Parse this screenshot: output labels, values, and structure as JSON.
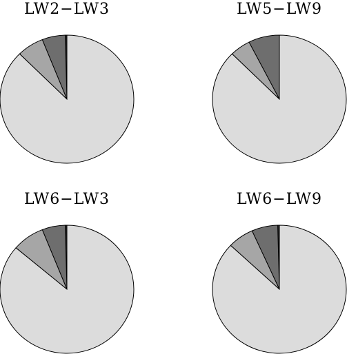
{
  "chart_data": [
    {
      "type": "pie",
      "title": "LW2−LW3",
      "start_angle_deg": 0,
      "direction": "counterclockwise",
      "slices": [
        {
          "value": 0.4,
          "color": "#2a2a2a"
        },
        {
          "value": 5.6,
          "color": "#6e6e6e"
        },
        {
          "value": 6.5,
          "color": "#a6a6a6"
        },
        {
          "value": 87.5,
          "color": "#dcdcdc"
        }
      ]
    },
    {
      "type": "pie",
      "title": "LW5−LW9",
      "start_angle_deg": 0,
      "direction": "counterclockwise",
      "slices": [
        {
          "value": 0.0,
          "color": "#2a2a2a"
        },
        {
          "value": 7.5,
          "color": "#6e6e6e"
        },
        {
          "value": 5.0,
          "color": "#a6a6a6"
        },
        {
          "value": 87.5,
          "color": "#dcdcdc"
        }
      ]
    },
    {
      "type": "pie",
      "title": "LW6−LW3",
      "start_angle_deg": 0,
      "direction": "counterclockwise",
      "slices": [
        {
          "value": 0.4,
          "color": "#2a2a2a"
        },
        {
          "value": 5.6,
          "color": "#6e6e6e"
        },
        {
          "value": 7.8,
          "color": "#a6a6a6"
        },
        {
          "value": 86.2,
          "color": "#dcdcdc"
        }
      ]
    },
    {
      "type": "pie",
      "title": "LW6−LW9",
      "start_angle_deg": 0,
      "direction": "counterclockwise",
      "slices": [
        {
          "value": 0.4,
          "color": "#2a2a2a"
        },
        {
          "value": 6.3,
          "color": "#6e6e6e"
        },
        {
          "value": 6.3,
          "color": "#a6a6a6"
        },
        {
          "value": 87.0,
          "color": "#dcdcdc"
        }
      ]
    }
  ]
}
